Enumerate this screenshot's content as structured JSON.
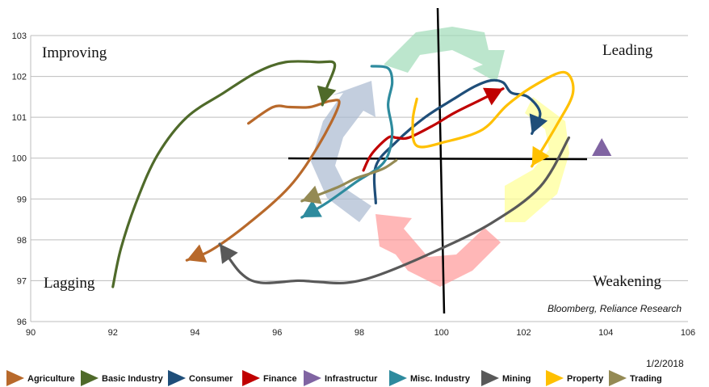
{
  "chart_data": {
    "type": "line",
    "xlim": [
      90,
      106
    ],
    "ylim": [
      96,
      103
    ],
    "x_ticks": [
      "90",
      "92",
      "94",
      "96",
      "98",
      "100",
      "102",
      "104",
      "106"
    ],
    "y_ticks": [
      "96",
      "97",
      "98",
      "99",
      "100",
      "101",
      "102",
      "103"
    ],
    "grid": "horizontal",
    "quadrant_labels": {
      "top_left": "Improving",
      "top_right": "Leading",
      "bottom_left": "Lagging",
      "bottom_right": "Weakening"
    },
    "source": "Bloomberg, Reliance Research",
    "date": "1/2/2018",
    "legend_position": "bottom",
    "series": [
      {
        "name": "Agriculture",
        "color": "#b8692b",
        "points": [
          [
            95.3,
            100.85
          ],
          [
            95.9,
            101.25
          ],
          [
            96.3,
            101.25
          ],
          [
            96.8,
            101.25
          ],
          [
            97.3,
            101.4
          ],
          [
            97.5,
            101.3
          ],
          [
            97.0,
            100.3
          ],
          [
            96.3,
            99.3
          ],
          [
            95.3,
            98.4
          ],
          [
            94.4,
            97.75
          ],
          [
            93.8,
            97.5
          ]
        ]
      },
      {
        "name": "Basic Industry",
        "color": "#4f6a2a",
        "points": [
          [
            92.0,
            96.85
          ],
          [
            92.2,
            97.8
          ],
          [
            92.6,
            99.0
          ],
          [
            93.1,
            100.1
          ],
          [
            93.8,
            101.0
          ],
          [
            94.7,
            101.6
          ],
          [
            95.5,
            102.1
          ],
          [
            96.2,
            102.35
          ],
          [
            97.0,
            102.35
          ],
          [
            97.4,
            102.3
          ],
          [
            97.2,
            101.7
          ],
          [
            97.1,
            101.3
          ]
        ]
      },
      {
        "name": "Consumer",
        "color": "#1f4e79",
        "points": [
          [
            98.4,
            98.9
          ],
          [
            98.4,
            99.8
          ],
          [
            98.9,
            100.4
          ],
          [
            99.6,
            101.0
          ],
          [
            100.3,
            101.45
          ],
          [
            100.8,
            101.75
          ],
          [
            101.2,
            101.9
          ],
          [
            101.5,
            101.85
          ],
          [
            101.7,
            101.6
          ],
          [
            102.1,
            101.5
          ],
          [
            102.4,
            101.1
          ],
          [
            102.2,
            100.6
          ]
        ]
      },
      {
        "name": "Finance",
        "color": "#c00000",
        "points": [
          [
            98.1,
            99.7
          ],
          [
            98.3,
            100.1
          ],
          [
            98.7,
            100.5
          ],
          [
            98.9,
            100.5
          ],
          [
            99.2,
            100.5
          ],
          [
            99.8,
            100.8
          ],
          [
            100.3,
            101.1
          ],
          [
            100.9,
            101.4
          ],
          [
            101.5,
            101.7
          ]
        ]
      },
      {
        "name": "Infrastructur",
        "color": "#8064a2",
        "points": [
          [
            103.9,
            100.25
          ],
          [
            103.7,
            100.05
          ]
        ]
      },
      {
        "name": "Misc. Industry",
        "color": "#2e8b9e",
        "points": [
          [
            98.3,
            102.25
          ],
          [
            98.7,
            102.2
          ],
          [
            98.8,
            101.85
          ],
          [
            98.7,
            101.3
          ],
          [
            98.8,
            100.6
          ],
          [
            98.6,
            99.9
          ],
          [
            97.9,
            99.4
          ],
          [
            97.2,
            98.9
          ],
          [
            96.6,
            98.55
          ]
        ]
      },
      {
        "name": "Mining",
        "color": "#595959",
        "points": [
          [
            103.1,
            100.5
          ],
          [
            102.4,
            99.3
          ],
          [
            101.2,
            98.4
          ],
          [
            99.8,
            97.7
          ],
          [
            98.5,
            97.15
          ],
          [
            97.7,
            96.95
          ],
          [
            97.0,
            96.97
          ],
          [
            96.5,
            97.0
          ],
          [
            95.6,
            96.95
          ],
          [
            95.1,
            97.2
          ],
          [
            94.6,
            97.9
          ]
        ]
      },
      {
        "name": "Property",
        "color": "#ffc000",
        "points": [
          [
            99.4,
            101.45
          ],
          [
            99.3,
            100.9
          ],
          [
            99.4,
            100.3
          ],
          [
            100.1,
            100.4
          ],
          [
            101.0,
            100.7
          ],
          [
            101.6,
            101.3
          ],
          [
            102.3,
            101.8
          ],
          [
            103.0,
            102.1
          ],
          [
            103.2,
            101.6
          ],
          [
            102.8,
            100.8
          ],
          [
            102.2,
            99.8
          ]
        ]
      },
      {
        "name": "Trading",
        "color": "#948a54",
        "points": [
          [
            98.9,
            99.95
          ],
          [
            98.6,
            99.75
          ],
          [
            98.2,
            99.6
          ],
          [
            97.9,
            99.5
          ],
          [
            97.5,
            99.3
          ],
          [
            97.0,
            99.1
          ],
          [
            96.6,
            98.95
          ]
        ]
      }
    ]
  }
}
